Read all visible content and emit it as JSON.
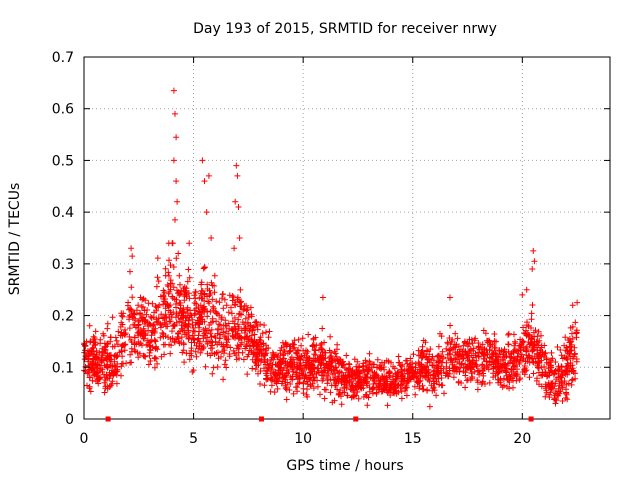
{
  "chart_data": {
    "type": "scatter",
    "title": "Day 193 of 2015, SRMTID for receiver nrwy",
    "xlabel": "GPS time / hours",
    "ylabel": "SRMTID / TECUs",
    "xlim": [
      0,
      24
    ],
    "ylim": [
      0,
      0.7
    ],
    "xticks": [
      0,
      5,
      10,
      15,
      20
    ],
    "yticks": [
      0,
      0.1,
      0.2,
      0.3,
      0.4,
      0.5,
      0.6,
      0.7
    ],
    "grid": true,
    "marker": "+",
    "colors": {
      "series": "#ff0000",
      "grid": "#a0a0a0",
      "axes": "#000000"
    },
    "markers_on_x_axis": [
      1.1,
      8.1,
      12.4,
      20.4
    ],
    "series": [
      {
        "name": "SRMTID",
        "envelope_x": [
          0,
          0.5,
          1,
          1.5,
          2,
          2.5,
          3,
          3.5,
          4,
          4.5,
          5,
          5.5,
          6,
          6.5,
          7,
          7.5,
          8,
          8.5,
          9,
          9.5,
          10,
          10.5,
          11,
          11.5,
          12,
          12.5,
          13,
          13.5,
          14,
          14.5,
          15,
          15.5,
          16,
          16.5,
          17,
          17.5,
          18,
          18.5,
          19,
          19.5,
          20,
          20.5,
          21,
          21.5,
          22,
          22.5
        ],
        "envelope_center": [
          0.11,
          0.12,
          0.1,
          0.12,
          0.18,
          0.17,
          0.16,
          0.2,
          0.22,
          0.2,
          0.18,
          0.2,
          0.17,
          0.16,
          0.19,
          0.16,
          0.13,
          0.11,
          0.1,
          0.11,
          0.1,
          0.11,
          0.1,
          0.09,
          0.08,
          0.07,
          0.08,
          0.08,
          0.07,
          0.08,
          0.09,
          0.1,
          0.09,
          0.11,
          0.12,
          0.12,
          0.11,
          0.12,
          0.1,
          0.11,
          0.13,
          0.14,
          0.1,
          0.07,
          0.1,
          0.14
        ],
        "envelope_spread": [
          0.04,
          0.04,
          0.05,
          0.05,
          0.05,
          0.05,
          0.06,
          0.07,
          0.08,
          0.07,
          0.07,
          0.07,
          0.07,
          0.06,
          0.06,
          0.05,
          0.04,
          0.04,
          0.04,
          0.04,
          0.04,
          0.04,
          0.04,
          0.04,
          0.03,
          0.03,
          0.03,
          0.03,
          0.03,
          0.03,
          0.03,
          0.04,
          0.04,
          0.04,
          0.04,
          0.04,
          0.04,
          0.04,
          0.03,
          0.04,
          0.04,
          0.05,
          0.04,
          0.04,
          0.05,
          0.05
        ],
        "peaks": [
          {
            "x": 4.1,
            "y": 0.635
          },
          {
            "x": 4.15,
            "y": 0.59
          },
          {
            "x": 4.2,
            "y": 0.545
          },
          {
            "x": 4.1,
            "y": 0.5
          },
          {
            "x": 4.2,
            "y": 0.46
          },
          {
            "x": 4.25,
            "y": 0.42
          },
          {
            "x": 4.15,
            "y": 0.385
          },
          {
            "x": 4.05,
            "y": 0.34
          },
          {
            "x": 4.3,
            "y": 0.32
          },
          {
            "x": 4.8,
            "y": 0.34
          },
          {
            "x": 5.4,
            "y": 0.5
          },
          {
            "x": 5.5,
            "y": 0.46
          },
          {
            "x": 5.7,
            "y": 0.47
          },
          {
            "x": 5.6,
            "y": 0.4
          },
          {
            "x": 5.8,
            "y": 0.35
          },
          {
            "x": 6.95,
            "y": 0.49
          },
          {
            "x": 7.0,
            "y": 0.47
          },
          {
            "x": 6.9,
            "y": 0.42
          },
          {
            "x": 7.05,
            "y": 0.41
          },
          {
            "x": 6.85,
            "y": 0.33
          },
          {
            "x": 7.1,
            "y": 0.35
          },
          {
            "x": 2.15,
            "y": 0.33
          },
          {
            "x": 2.2,
            "y": 0.315
          },
          {
            "x": 2.1,
            "y": 0.285
          },
          {
            "x": 10.9,
            "y": 0.235
          },
          {
            "x": 16.7,
            "y": 0.235
          },
          {
            "x": 20.5,
            "y": 0.325
          },
          {
            "x": 20.55,
            "y": 0.305
          },
          {
            "x": 20.45,
            "y": 0.29
          },
          {
            "x": 20.0,
            "y": 0.24
          },
          {
            "x": 20.2,
            "y": 0.25
          },
          {
            "x": 22.5,
            "y": 0.225
          },
          {
            "x": 22.3,
            "y": 0.22
          }
        ]
      }
    ]
  }
}
